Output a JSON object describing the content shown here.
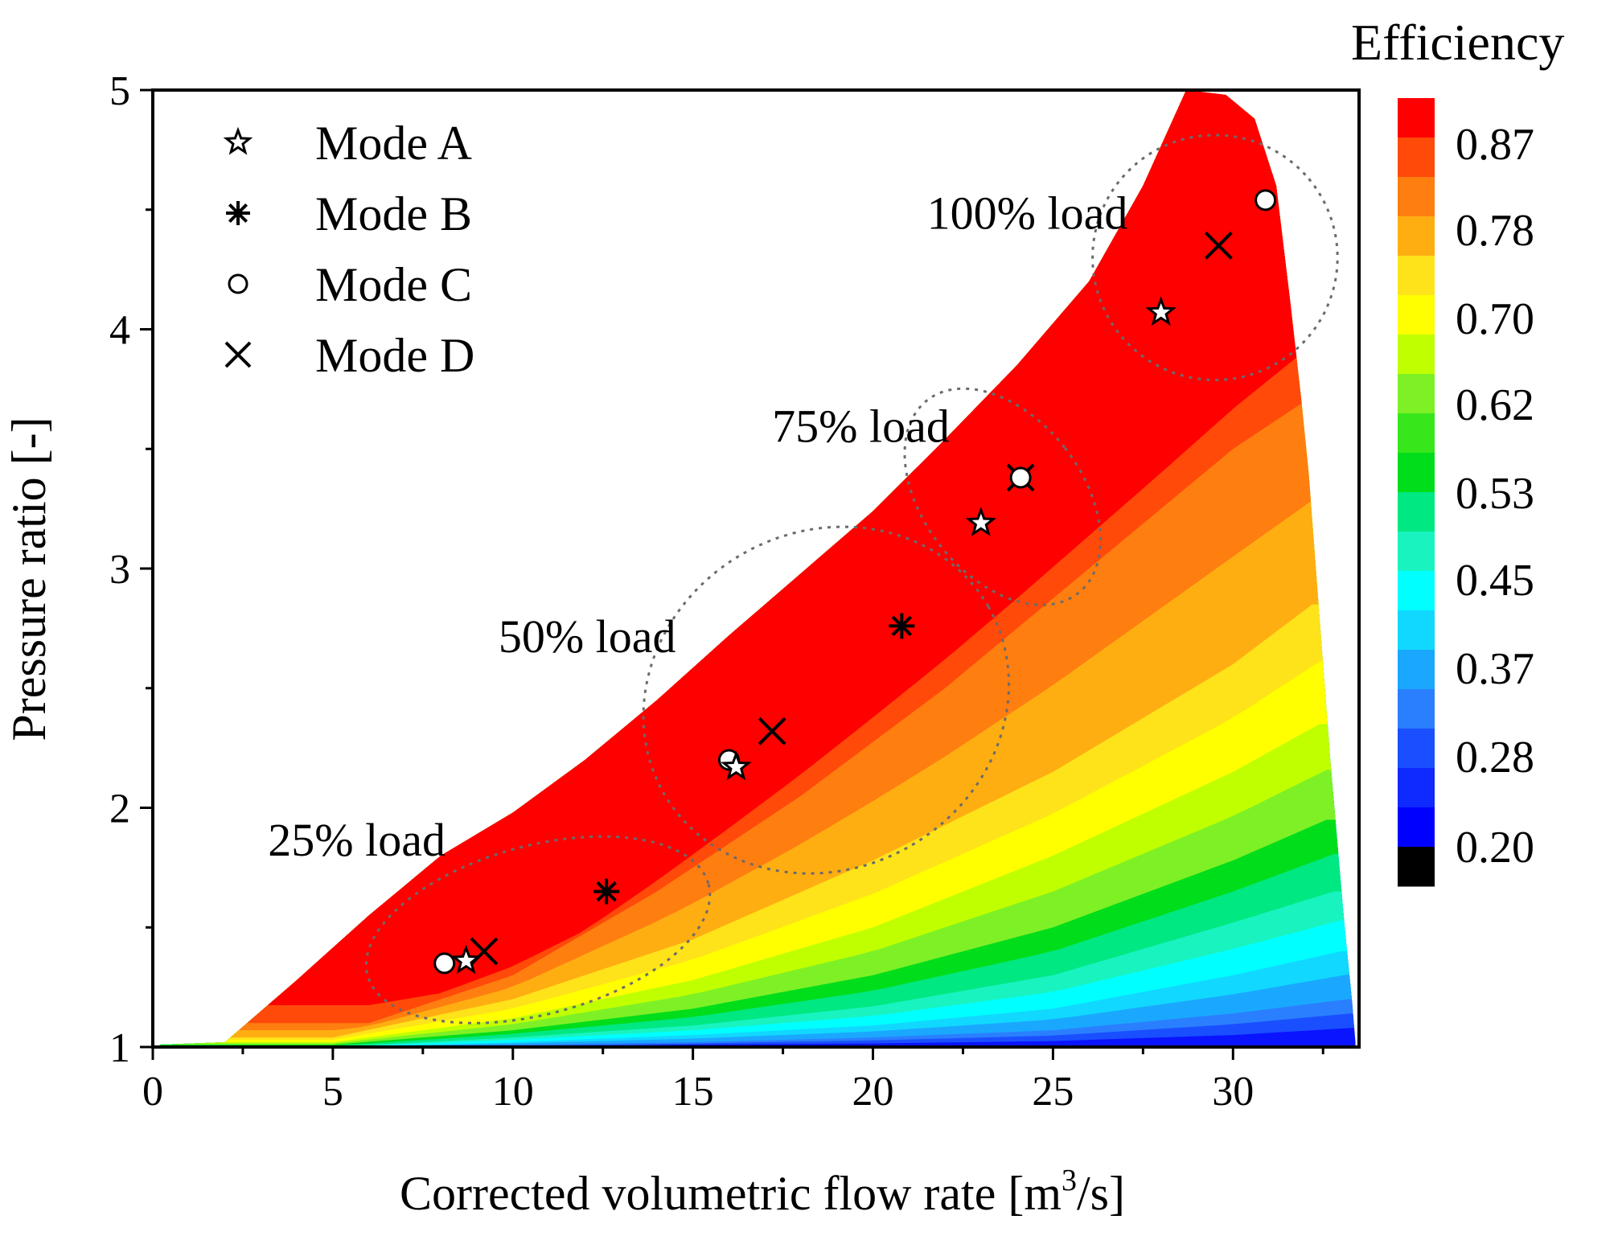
{
  "chart_data": {
    "type": "contour",
    "xlabel": "Corrected volumetric flow rate [m³/s]",
    "xlabel_main": "Corrected volumetric flow rate [m",
    "xlabel_sup": "3",
    "xlabel_tail": "/s]",
    "ylabel": "Pressure ratio [-]",
    "xlim": [
      0,
      33.5
    ],
    "ylim": [
      1,
      5
    ],
    "xticks": [
      0,
      5,
      10,
      15,
      20,
      25,
      30
    ],
    "yticks": [
      1,
      2,
      3,
      4,
      5
    ],
    "colorbar": {
      "title": "Efficiency",
      "range": [
        0.2,
        0.87
      ],
      "labels": [
        "0.87",
        "0.78",
        "0.70",
        "0.62",
        "0.53",
        "0.45",
        "0.37",
        "0.28",
        "0.20"
      ],
      "colors": [
        "#ff0000",
        "#ff4a0a",
        "#ff7e10",
        "#ffae12",
        "#ffe31a",
        "#ffff00",
        "#c0ff00",
        "#7ef026",
        "#37e61b",
        "#00dd1a",
        "#00e882",
        "#19f3c0",
        "#00ffff",
        "#11d8ff",
        "#1aa8ff",
        "#2a7fff",
        "#1a4fff",
        "#0f2aff",
        "#0000ff",
        "#000000"
      ]
    },
    "map_boundary": {
      "x": [
        0.2,
        2,
        4,
        6,
        8,
        10,
        12,
        14,
        16,
        18,
        20,
        22,
        24,
        26,
        27.5,
        28.7,
        29.8,
        30.6,
        31.2,
        31.6,
        31.9,
        32.1,
        32.3,
        32.5,
        32.7,
        32.9,
        33.1,
        33.3,
        33.4
      ],
      "y": [
        1.01,
        1.02,
        1.28,
        1.55,
        1.8,
        1.98,
        2.2,
        2.45,
        2.72,
        2.98,
        3.24,
        3.54,
        3.85,
        4.2,
        4.6,
        5.0,
        4.98,
        4.88,
        4.6,
        4.1,
        3.7,
        3.4,
        3.0,
        2.6,
        2.2,
        1.85,
        1.5,
        1.2,
        1.02
      ]
    },
    "efficiency_contour_bands": [
      {
        "level": 0.87,
        "x": [
          8,
          12,
          16,
          20,
          24,
          28,
          31.5
        ],
        "y": [
          1.25,
          1.5,
          1.98,
          2.48,
          3.0,
          3.55,
          4.05
        ]
      },
      {
        "level": 0.78,
        "x": [
          6,
          10,
          14,
          18,
          22,
          26,
          30,
          32
        ],
        "y": [
          1.1,
          1.3,
          1.65,
          2.05,
          2.5,
          3.0,
          3.5,
          3.7
        ]
      },
      {
        "level": 0.7,
        "x": [
          5,
          10,
          15,
          20,
          25,
          30,
          32.2
        ],
        "y": [
          1.04,
          1.2,
          1.45,
          1.78,
          2.15,
          2.6,
          2.85
        ]
      },
      {
        "level": 0.62,
        "x": [
          5,
          10,
          15,
          20,
          25,
          30,
          32.4
        ],
        "y": [
          1.02,
          1.12,
          1.28,
          1.5,
          1.8,
          2.15,
          2.35
        ]
      },
      {
        "level": 0.53,
        "x": [
          5,
          10,
          15,
          20,
          25,
          30,
          32.6
        ],
        "y": [
          1.01,
          1.07,
          1.16,
          1.3,
          1.5,
          1.78,
          1.95
        ]
      },
      {
        "level": 0.45,
        "x": [
          5,
          10,
          15,
          20,
          25,
          30,
          32.8
        ],
        "y": [
          1.0,
          1.04,
          1.09,
          1.17,
          1.3,
          1.52,
          1.65
        ]
      },
      {
        "level": 0.37,
        "x": [
          5,
          10,
          15,
          20,
          25,
          30,
          33.0
        ],
        "y": [
          1.0,
          1.02,
          1.05,
          1.09,
          1.16,
          1.3,
          1.4
        ]
      },
      {
        "level": 0.28,
        "x": [
          5,
          10,
          15,
          20,
          25,
          30,
          33.2
        ],
        "y": [
          1.0,
          1.01,
          1.02,
          1.04,
          1.07,
          1.14,
          1.2
        ]
      },
      {
        "level": 0.2,
        "x": [
          5,
          10,
          15,
          20,
          25,
          30,
          33.3
        ],
        "y": [
          1.0,
          1.0,
          1.01,
          1.015,
          1.025,
          1.05,
          1.08
        ]
      }
    ],
    "series": [
      {
        "name": "Mode A",
        "marker": "star",
        "x": [
          8.7,
          16.2,
          23.0,
          28.0
        ],
        "y": [
          1.36,
          2.17,
          3.19,
          4.07
        ]
      },
      {
        "name": "Mode B",
        "marker": "asterisk",
        "x": [
          12.6,
          20.8
        ],
        "y": [
          1.65,
          2.76
        ]
      },
      {
        "name": "Mode C",
        "marker": "circle",
        "x": [
          8.1,
          16.0,
          24.1,
          30.9
        ],
        "y": [
          1.35,
          2.2,
          3.38,
          4.54
        ]
      },
      {
        "name": "Mode D",
        "marker": "x",
        "x": [
          9.2,
          17.2,
          24.1,
          29.6
        ],
        "y": [
          1.4,
          2.32,
          3.38,
          4.35
        ]
      }
    ],
    "load_groups": [
      {
        "label": "25% load",
        "label_x": 3.2,
        "label_y": 1.8,
        "cx": 10.7,
        "cy": 1.49,
        "rx": 4.9,
        "ry": 0.11,
        "angle_deg": -15
      },
      {
        "label": "50% load",
        "label_x": 9.6,
        "label_y": 2.65,
        "cx": 18.7,
        "cy": 2.45,
        "rx": 5.2,
        "ry": 0.22,
        "angle_deg": -30
      },
      {
        "label": "75% load",
        "label_x": 17.2,
        "label_y": 3.53,
        "cx": 23.6,
        "cy": 3.3,
        "rx": 2.2,
        "ry": 0.16,
        "angle_deg": -38
      },
      {
        "label": "100% load",
        "label_x": 21.5,
        "label_y": 4.42,
        "cx": 29.5,
        "cy": 4.3,
        "rx": 3.4,
        "ry": 0.16,
        "angle_deg": -40
      }
    ],
    "legend_position": "top-left",
    "grid": false
  }
}
